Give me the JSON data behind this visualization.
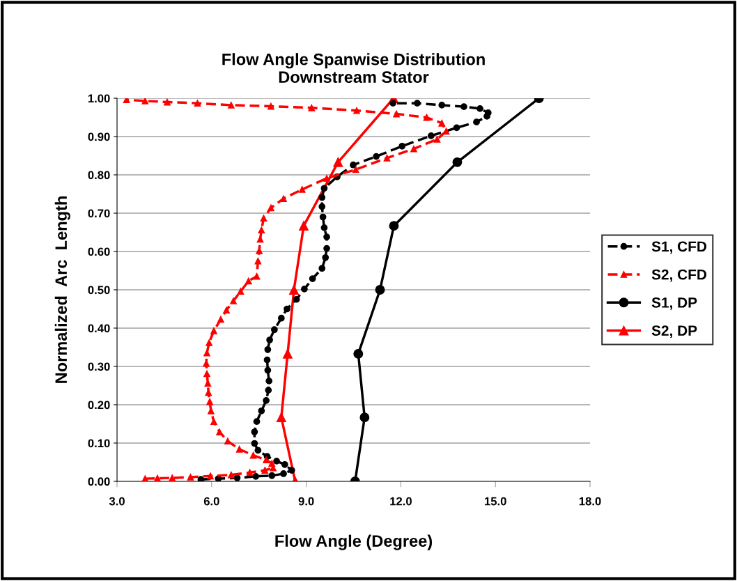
{
  "chart_data": {
    "type": "line",
    "title": "Flow Angle Spanwise Distribution\nDownstream Stator",
    "xlabel": "Flow Angle (Degree)",
    "ylabel": "Normalized  Arc  Length",
    "xlim": [
      3,
      18
    ],
    "xticks": [
      {
        "value": 3,
        "label": "3.0"
      },
      {
        "value": 6,
        "label": "6.0"
      },
      {
        "value": 9,
        "label": "9.0"
      },
      {
        "value": 12,
        "label": "12.0"
      },
      {
        "value": 15,
        "label": "15.0"
      },
      {
        "value": 18,
        "label": "18.0"
      }
    ],
    "ylim": [
      0,
      1
    ],
    "yticks": [
      {
        "value": 0,
        "label": "0.00"
      },
      {
        "value": 0.1,
        "label": "0.10"
      },
      {
        "value": 0.2,
        "label": "0.20"
      },
      {
        "value": 0.3,
        "label": "0.30"
      },
      {
        "value": 0.4,
        "label": "0.40"
      },
      {
        "value": 0.5,
        "label": "0.50"
      },
      {
        "value": 0.6,
        "label": "0.60"
      },
      {
        "value": 0.7,
        "label": "0.70"
      },
      {
        "value": 0.8,
        "label": "0.80"
      },
      {
        "value": 0.9,
        "label": "0.90"
      },
      {
        "value": 1,
        "label": "1.00"
      }
    ],
    "grid": "y",
    "legend": "right",
    "series": [
      {
        "name": "S1, CFD",
        "color": "#000000",
        "marker": "circle",
        "line_style": "dashed",
        "x": [
          5.66,
          6.21,
          6.81,
          7.4,
          7.91,
          8.28,
          8.54,
          8.32,
          8.06,
          7.76,
          7.47,
          7.36,
          7.36,
          7.43,
          7.58,
          7.73,
          7.8,
          7.82,
          7.78,
          7.76,
          7.78,
          7.84,
          7.99,
          8.21,
          8.39,
          8.69,
          8.94,
          9.2,
          9.5,
          9.61,
          9.65,
          9.65,
          9.57,
          9.53,
          9.5,
          9.5,
          9.57,
          9.98,
          10.49,
          11.22,
          12.04,
          12.96,
          13.77,
          14.4,
          14.73,
          14.77,
          14.51,
          14.0,
          13.3,
          12.52,
          11.75
        ],
        "values": [
          0.005,
          0.007,
          0.009,
          0.013,
          0.015,
          0.02,
          0.029,
          0.044,
          0.053,
          0.065,
          0.081,
          0.099,
          0.129,
          0.156,
          0.184,
          0.211,
          0.238,
          0.262,
          0.29,
          0.317,
          0.344,
          0.369,
          0.396,
          0.426,
          0.45,
          0.475,
          0.502,
          0.529,
          0.556,
          0.584,
          0.608,
          0.638,
          0.662,
          0.69,
          0.717,
          0.741,
          0.765,
          0.795,
          0.826,
          0.848,
          0.875,
          0.902,
          0.923,
          0.938,
          0.953,
          0.962,
          0.973,
          0.978,
          0.982,
          0.987,
          0.987
        ]
      },
      {
        "name": "S2, CFD",
        "color": "#ff0000",
        "marker": "triangle",
        "line_style": "dashed",
        "x": [
          3.89,
          4.28,
          4.75,
          5.33,
          5.96,
          6.62,
          7.21,
          7.69,
          7.95,
          7.91,
          7.73,
          7.32,
          6.88,
          6.51,
          6.25,
          6.07,
          5.98,
          5.94,
          5.9,
          5.88,
          5.85,
          5.83,
          5.85,
          5.92,
          6.07,
          6.29,
          6.47,
          6.69,
          6.92,
          7.17,
          7.43,
          7.47,
          7.51,
          7.54,
          7.58,
          7.65,
          7.88,
          8.28,
          8.87,
          9.65,
          10.57,
          11.56,
          12.41,
          13.15,
          13.44,
          13.3,
          12.82,
          11.86,
          10.6,
          9.17,
          7.88,
          6.62,
          5.55,
          4.59,
          3.89,
          3.3
        ],
        "values": [
          0.007,
          0.008,
          0.009,
          0.011,
          0.014,
          0.017,
          0.023,
          0.029,
          0.035,
          0.047,
          0.056,
          0.068,
          0.084,
          0.105,
          0.129,
          0.156,
          0.184,
          0.208,
          0.232,
          0.256,
          0.281,
          0.308,
          0.335,
          0.362,
          0.393,
          0.423,
          0.447,
          0.471,
          0.496,
          0.523,
          0.535,
          0.575,
          0.602,
          0.632,
          0.656,
          0.687,
          0.714,
          0.738,
          0.762,
          0.791,
          0.814,
          0.844,
          0.868,
          0.893,
          0.914,
          0.935,
          0.95,
          0.959,
          0.968,
          0.975,
          0.979,
          0.982,
          0.987,
          0.99,
          0.993,
          0.996
        ]
      },
      {
        "name": "S1, DP",
        "color": "#000000",
        "marker": "circle",
        "line_style": "solid",
        "x": [
          10.55,
          10.85,
          10.65,
          11.34,
          11.78,
          13.79,
          16.38
        ],
        "values": [
          0.0,
          0.167,
          0.333,
          0.5,
          0.667,
          0.833,
          1.0
        ]
      },
      {
        "name": "S2, DP",
        "color": "#ff0000",
        "marker": "triangle",
        "line_style": "solid",
        "x": [
          8.65,
          8.21,
          8.41,
          8.61,
          8.92,
          10.01,
          11.77
        ],
        "values": [
          0.0,
          0.167,
          0.333,
          0.5,
          0.667,
          0.833,
          1.0
        ]
      }
    ]
  }
}
